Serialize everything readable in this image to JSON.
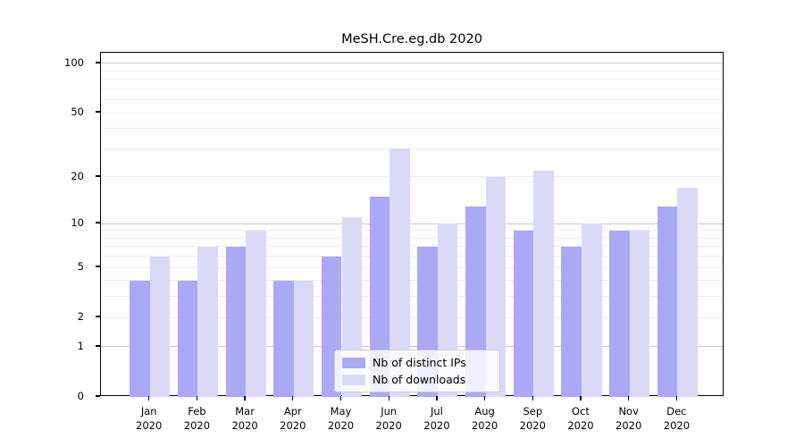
{
  "title": "MeSH.Cre.eg.db 2020",
  "colors": {
    "ips_bar": "#a9a9f5",
    "downloads_bar": "#dadaf8",
    "grid_major": "#c9c9c9",
    "grid_minor": "#ededed",
    "axis": "#000000"
  },
  "legend": {
    "items": [
      {
        "label": "Nb of distinct IPs",
        "series": "ips"
      },
      {
        "label": "Nb of downloads",
        "series": "downloads"
      }
    ]
  },
  "y_axis": {
    "tick_values": [
      0,
      1,
      2,
      5,
      10,
      20,
      50,
      100
    ],
    "major_grid_values": [
      1,
      10,
      100
    ],
    "minor_grid_values": [
      2,
      3,
      4,
      5,
      6,
      7,
      8,
      9,
      20,
      30,
      40,
      50,
      60,
      70,
      80,
      90
    ]
  },
  "x_axis": {
    "months": [
      "Jan",
      "Feb",
      "Mar",
      "Apr",
      "May",
      "Jun",
      "Jul",
      "Aug",
      "Sep",
      "Oct",
      "Nov",
      "Dec"
    ],
    "year": "2020"
  },
  "chart_data": {
    "type": "bar",
    "title": "MeSH.Cre.eg.db 2020",
    "categories": [
      "Jan 2020",
      "Feb 2020",
      "Mar 2020",
      "Apr 2020",
      "May 2020",
      "Jun 2020",
      "Jul 2020",
      "Aug 2020",
      "Sep 2020",
      "Oct 2020",
      "Nov 2020",
      "Dec 2020"
    ],
    "series": [
      {
        "name": "Nb of distinct IPs",
        "values": [
          4,
          4,
          7,
          4,
          6,
          15,
          7,
          13,
          9,
          7,
          9,
          13
        ]
      },
      {
        "name": "Nb of downloads",
        "values": [
          6,
          7,
          9,
          4,
          11,
          30,
          10,
          20,
          22,
          10,
          9,
          17
        ]
      }
    ],
    "xlabel": "",
    "ylabel": "",
    "yscale": "log1p",
    "y_ticks": [
      0,
      1,
      2,
      5,
      10,
      20,
      50,
      100
    ],
    "ylim": [
      0,
      116
    ],
    "grid": true,
    "legend_position": "bottom-center"
  }
}
